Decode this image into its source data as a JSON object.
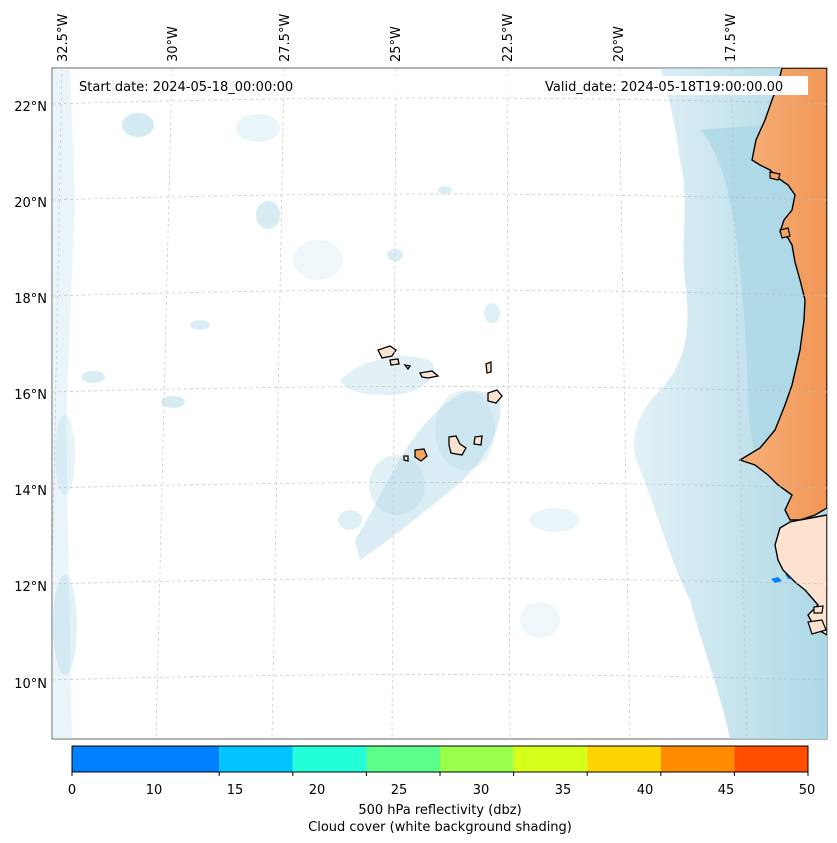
{
  "header": {
    "start_date": "Start date: 2024-05-18_00:00:00",
    "valid_date": "Valid_date: 2024-05-18T19:00:00.00"
  },
  "map": {
    "longitude_labels": [
      "32.5°W",
      "30°W",
      "27.5°W",
      "25°W",
      "22.5°W",
      "20°W",
      "17.5°W"
    ],
    "latitude_labels": [
      "22°N",
      "20°N",
      "18°N",
      "16°N",
      "14°N",
      "12°N",
      "10°N"
    ],
    "extent": {
      "lon_min": -32.6,
      "lon_max": -15.4,
      "lat_min": 8.9,
      "lat_max": 22.8
    },
    "colors": {
      "ocean": "#ffffff",
      "cloud": "#add8e6",
      "land_warm": "#f4a460",
      "land_light": "#fde3cf",
      "coastline": "#000000",
      "grid": "#cccccc"
    }
  },
  "colorbar": {
    "ticks": [
      "0",
      "10",
      "15",
      "20",
      "25",
      "30",
      "35",
      "40",
      "45",
      "50"
    ],
    "colors": [
      "#0080ff",
      "#00c4ff",
      "#22ffd8",
      "#5cff8a",
      "#98ff4a",
      "#d6ff1a",
      "#ffd400",
      "#ff8c00",
      "#ff4e00"
    ],
    "label_line1": "500 hPa reflectivity (dbz)",
    "label_line2": "Cloud cover (white background shading)"
  }
}
